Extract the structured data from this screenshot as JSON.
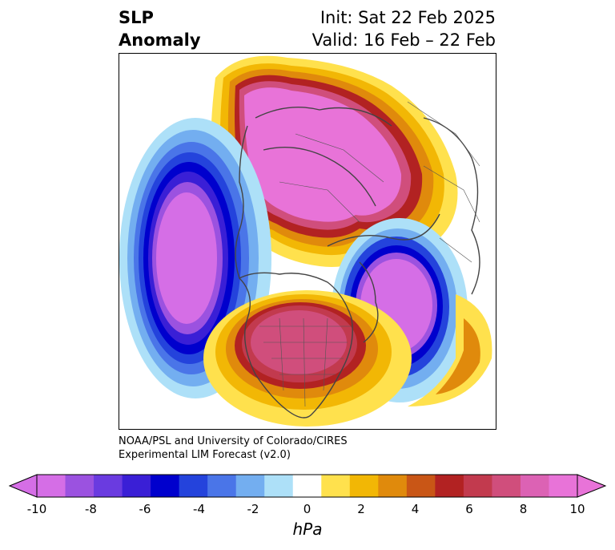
{
  "title": {
    "left_line1": "SLP",
    "left_line2": "Anomaly",
    "right_line1": "Init: Sat 22 Feb 2025",
    "right_line2": "Valid: 16 Feb – 22 Feb"
  },
  "credit": {
    "line1": "NOAA/PSL and University of Colorado/CIRES",
    "line2": "Experimental LIM Forecast (v2.0)"
  },
  "colorbar": {
    "units": "hPa",
    "ticks": [
      "-10",
      "-8",
      "-6",
      "-4",
      "-2",
      "0",
      "2",
      "4",
      "6",
      "8",
      "10"
    ],
    "colors": [
      "#d56ee6",
      "#9b52e0",
      "#6a3be0",
      "#3a1fd6",
      "#0000cd",
      "#2443dc",
      "#4a75e8",
      "#73aef0",
      "#ade0f8",
      "#ffffff",
      "#ffe14d",
      "#f2b705",
      "#e08a0c",
      "#c95616",
      "#b22222",
      "#c23a4e",
      "#d04e7c",
      "#dc62b4",
      "#e873d8"
    ]
  },
  "map": {
    "regions": [
      {
        "name": "anomaly-high-arctic",
        "sign": "positive",
        "peak_hpa": 10
      },
      {
        "name": "anomaly-low-north-pacific",
        "sign": "negative",
        "peak_hpa": -10
      },
      {
        "name": "anomaly-low-north-atlantic",
        "sign": "negative",
        "peak_hpa": -10
      },
      {
        "name": "anomaly-high-north-america",
        "sign": "positive",
        "peak_hpa": 9
      }
    ]
  }
}
